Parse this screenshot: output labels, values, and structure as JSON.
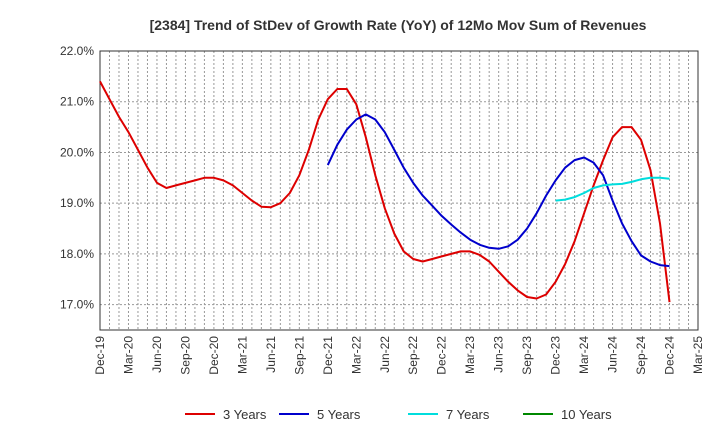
{
  "chart_data": {
    "type": "line",
    "title": "[2384]  Trend of StDev of Growth Rate (YoY) of 12Mo Mov Sum of Revenues",
    "xlabel": "",
    "ylabel": "",
    "ylim": [
      16.5,
      22.0
    ],
    "y_ticks": [
      "17.0%",
      "18.0%",
      "19.0%",
      "20.0%",
      "21.0%",
      "22.0%"
    ],
    "y_tick_values": [
      17.0,
      18.0,
      19.0,
      20.0,
      21.0,
      22.0
    ],
    "x_ticks": [
      "Dec-19",
      "Mar-20",
      "Jun-20",
      "Sep-20",
      "Dec-20",
      "Mar-21",
      "Jun-21",
      "Sep-21",
      "Dec-21",
      "Mar-22",
      "Jun-22",
      "Sep-22",
      "Dec-22",
      "Mar-23",
      "Jun-23",
      "Sep-23",
      "Dec-23",
      "Mar-24",
      "Jun-24",
      "Sep-24",
      "Dec-24",
      "Mar-25"
    ],
    "x_range_months": [
      0,
      63
    ],
    "grid": true,
    "legend_position": "bottom",
    "series": [
      {
        "name": "3 Years",
        "color": "#dd0000",
        "start_month": 0,
        "values": [
          21.4,
          21.05,
          20.7,
          20.4,
          20.05,
          19.7,
          19.4,
          19.3,
          19.35,
          19.4,
          19.45,
          19.5,
          19.5,
          19.45,
          19.35,
          19.2,
          19.05,
          18.93,
          18.92,
          19.0,
          19.2,
          19.55,
          20.05,
          20.65,
          21.05,
          21.25,
          21.25,
          20.95,
          20.3,
          19.55,
          18.9,
          18.4,
          18.05,
          17.9,
          17.85,
          17.9,
          17.95,
          18.0,
          18.05,
          18.05,
          17.98,
          17.85,
          17.65,
          17.45,
          17.28,
          17.15,
          17.12,
          17.2,
          17.45,
          17.8,
          18.25,
          18.8,
          19.35,
          19.85,
          20.3,
          20.5,
          20.5,
          20.25,
          19.65,
          18.6,
          17.05
        ]
      },
      {
        "name": "5 Years",
        "color": "#0000cc",
        "start_month": 24,
        "values": [
          19.75,
          20.15,
          20.45,
          20.65,
          20.75,
          20.65,
          20.4,
          20.05,
          19.7,
          19.4,
          19.15,
          18.95,
          18.75,
          18.58,
          18.42,
          18.28,
          18.18,
          18.12,
          18.1,
          18.15,
          18.28,
          18.5,
          18.8,
          19.15,
          19.45,
          19.7,
          19.85,
          19.9,
          19.8,
          19.55,
          19.05,
          18.6,
          18.25,
          17.97,
          17.85,
          17.78,
          17.76
        ]
      },
      {
        "name": "7 Years",
        "color": "#00dddd",
        "start_month": 48,
        "values": [
          19.05,
          19.07,
          19.12,
          19.2,
          19.3,
          19.35,
          19.37,
          19.38,
          19.42,
          19.47,
          19.5,
          19.5,
          19.48
        ]
      },
      {
        "name": "10 Years",
        "color": "#008800",
        "start_month": 0,
        "values": []
      }
    ]
  }
}
